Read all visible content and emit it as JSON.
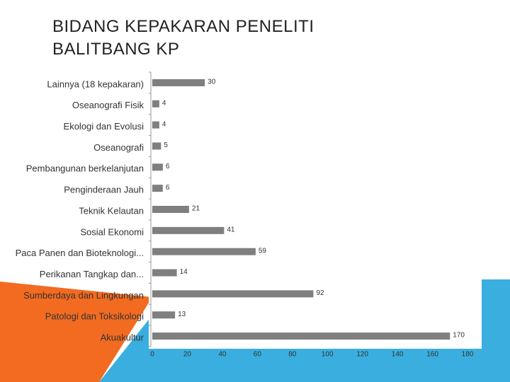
{
  "chart_data": {
    "type": "bar",
    "orientation": "horizontal",
    "title": "BIDANG KEPAKARAN PENELITI BALITBANG KP",
    "categories": [
      "Lainnya (18 kepakaran)",
      "Oseanografi Fisik",
      "Ekologi dan Evolusi",
      "Oseanografi",
      "Pembangunan berkelanjutan",
      "Penginderaan Jauh",
      "Teknik Kelautan",
      "Sosial Ekonomi",
      "Paca Panen dan Bioteknologi...",
      "Perikanan Tangkap dan...",
      "Sumberdaya dan Lingkungan",
      "Patologi dan Toksikologi",
      "Akuakultur"
    ],
    "values": [
      30,
      4,
      4,
      5,
      6,
      6,
      21,
      41,
      59,
      14,
      92,
      13,
      170
    ],
    "color": "#7f7f7f",
    "xlim": [
      0,
      180
    ],
    "xticks": [
      0,
      20,
      40,
      60,
      80,
      100,
      120,
      140,
      160,
      180
    ]
  }
}
